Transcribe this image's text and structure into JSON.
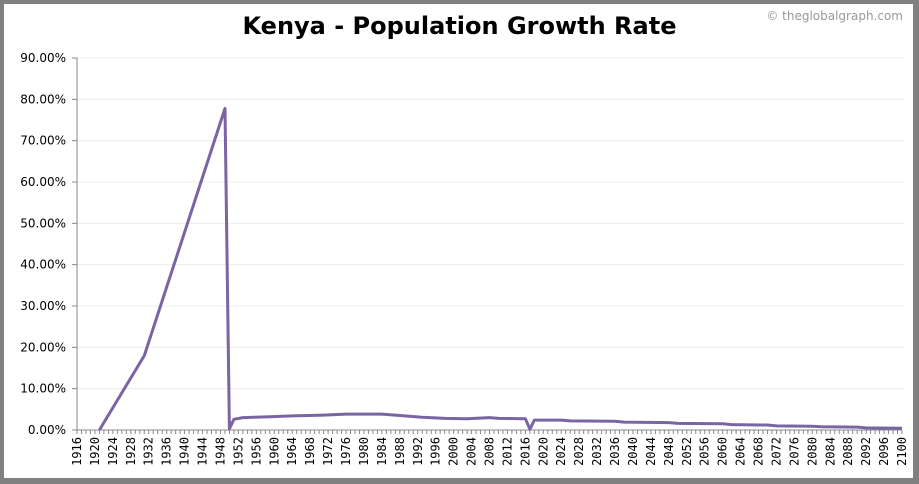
{
  "chart_data": {
    "type": "line",
    "title": "Kenya - Population Growth Rate",
    "credit": "© theglobalgraph.com",
    "xlabel": "",
    "ylabel": "",
    "xlim": [
      1916,
      2100
    ],
    "ylim": [
      0,
      90
    ],
    "x_tick_step": 4,
    "y_ticks": [
      "0.00%",
      "10.00%",
      "20.00%",
      "30.00%",
      "40.00%",
      "50.00%",
      "60.00%",
      "70.00%",
      "80.00%",
      "90.00%"
    ],
    "grid": true,
    "legend": "none",
    "line_color": "#7b64a3",
    "series": [
      {
        "points": [
          [
            1921,
            0
          ],
          [
            1931,
            18
          ],
          [
            1949,
            77.8
          ],
          [
            1950,
            0.3
          ],
          [
            1951,
            2.6
          ],
          [
            1953,
            3.0
          ],
          [
            1959,
            3.2
          ],
          [
            1964,
            3.4
          ],
          [
            1971,
            3.6
          ],
          [
            1976,
            3.85
          ],
          [
            1984,
            3.85
          ],
          [
            1988,
            3.5
          ],
          [
            1993,
            3.1
          ],
          [
            1998,
            2.8
          ],
          [
            2003,
            2.7
          ],
          [
            2008,
            3.0
          ],
          [
            2010,
            2.8
          ],
          [
            2016,
            2.7
          ],
          [
            2017,
            0.2
          ],
          [
            2018,
            2.4
          ],
          [
            2024,
            2.4
          ],
          [
            2026,
            2.2
          ],
          [
            2036,
            2.1
          ],
          [
            2038,
            1.9
          ],
          [
            2048,
            1.8
          ],
          [
            2050,
            1.6
          ],
          [
            2060,
            1.5
          ],
          [
            2062,
            1.3
          ],
          [
            2070,
            1.2
          ],
          [
            2072,
            1.0
          ],
          [
            2080,
            0.9
          ],
          [
            2082,
            0.8
          ],
          [
            2090,
            0.7
          ],
          [
            2092,
            0.5
          ],
          [
            2100,
            0.4
          ]
        ]
      }
    ]
  }
}
